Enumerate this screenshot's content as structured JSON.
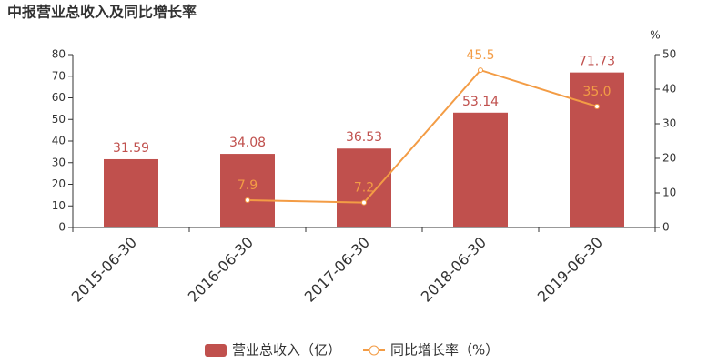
{
  "chart_data": {
    "type": "bar",
    "title": "中报营业总收入及同比增长率",
    "y2_label": "%",
    "categories": [
      "2015-06-30",
      "2016-06-30",
      "2017-06-30",
      "2018-06-30",
      "2019-06-30"
    ],
    "series": [
      {
        "name": "营业总收入（亿）",
        "type": "bar",
        "color": "#c0504d",
        "values": [
          31.59,
          34.08,
          36.53,
          53.14,
          71.73
        ]
      },
      {
        "name": "同比增长率（%）",
        "type": "line",
        "axis": "y2",
        "color": "#f39c45",
        "values": [
          null,
          7.9,
          7.2,
          45.5,
          35.0
        ],
        "value_labels": [
          null,
          "7.9",
          "7.2",
          "45.5",
          "35.0"
        ]
      }
    ],
    "ylim": [
      0,
      80
    ],
    "yticks": [
      0,
      10,
      20,
      30,
      40,
      50,
      60,
      70,
      80
    ],
    "y2lim": [
      0,
      50
    ],
    "y2ticks": [
      0,
      10,
      20,
      30,
      40,
      50
    ],
    "legend": "bottom"
  }
}
